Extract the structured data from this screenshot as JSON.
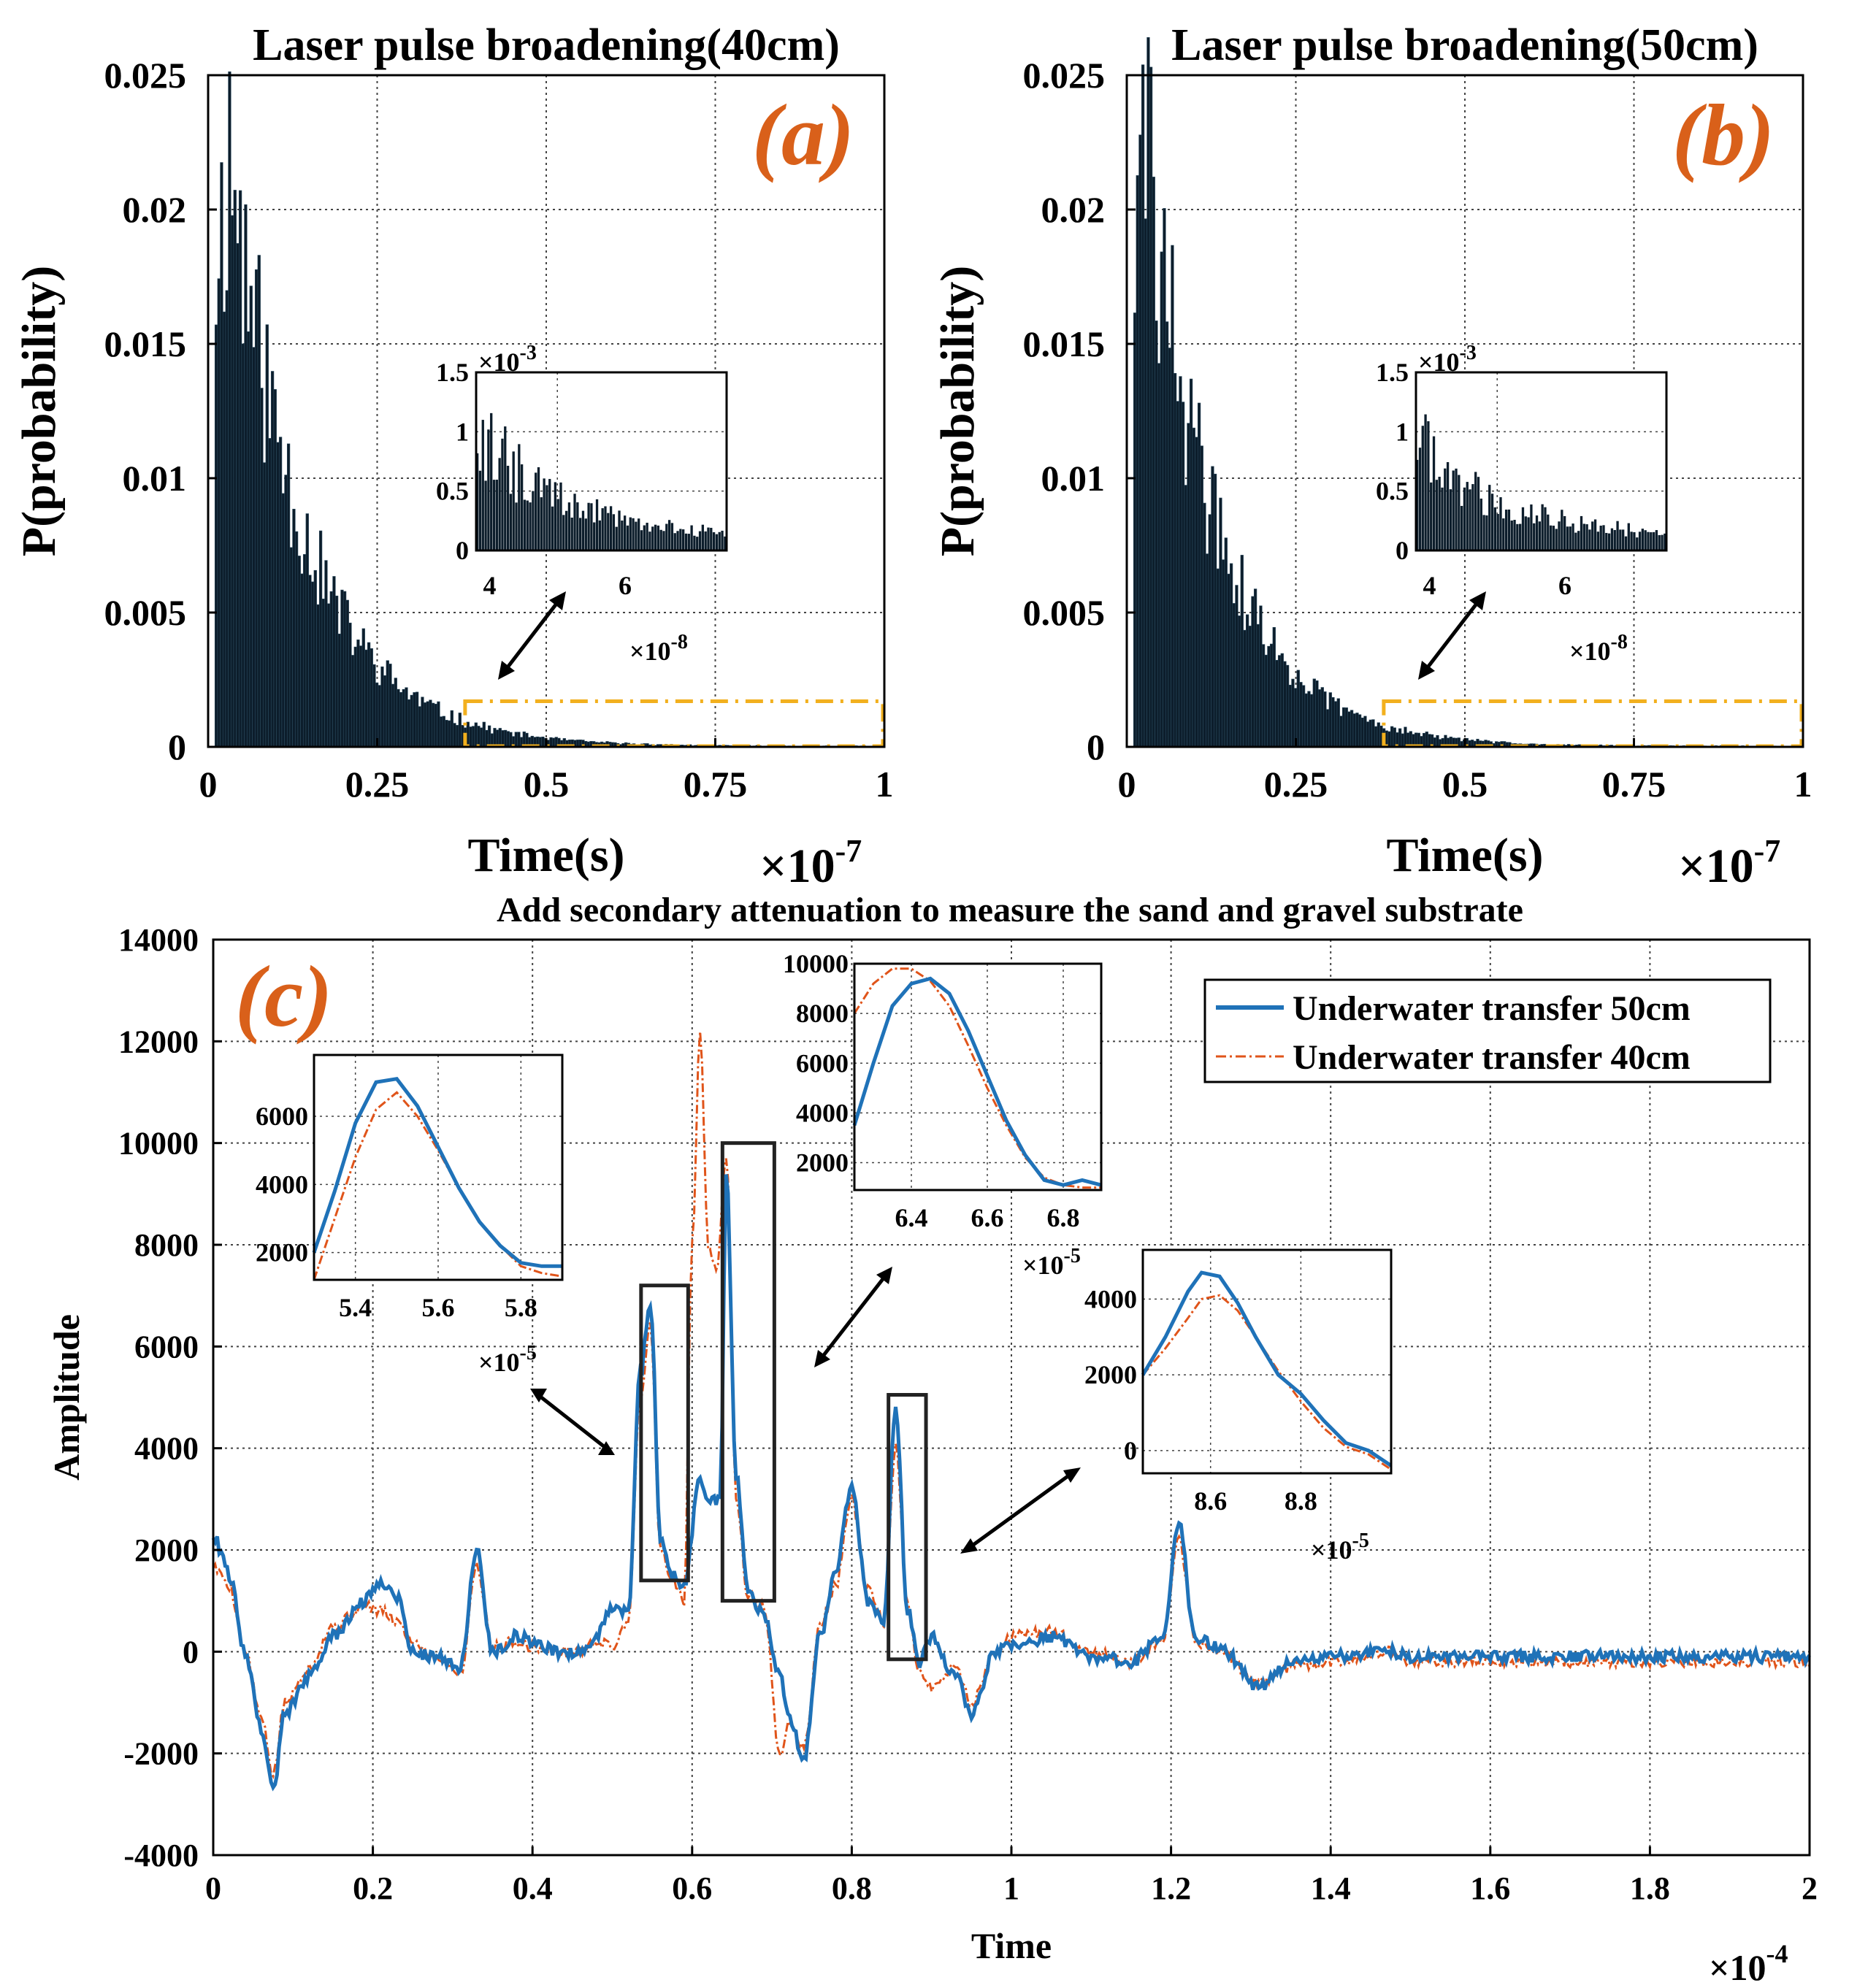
{
  "colors": {
    "hist": "#0c1d2b",
    "blue": "#1f72b8",
    "orange": "#e0541a",
    "highlight": "#f2b01e",
    "panel_label": "#d9601a"
  },
  "chart_data": [
    {
      "id": "a",
      "type": "bar",
      "panel_label": "(a)",
      "title": "Laser pulse broadening(40cm)",
      "xlabel": "Time(s)",
      "ylabel": "P(probability)",
      "x_scale": "×10",
      "x_scale_exp": "-7",
      "xlim": [
        0,
        1
      ],
      "ylim": [
        0,
        0.025
      ],
      "xticks": [
        "0",
        "0.25",
        "0.5",
        "0.75",
        "1"
      ],
      "yticks": [
        "0",
        "0.005",
        "0.01",
        "0.015",
        "0.02",
        "0.025"
      ],
      "histogram": {
        "bins": 250,
        "start": 0.01,
        "end": 1.0,
        "peak": 0.022,
        "peak_at": 0.03,
        "decay_const": 0.11
      },
      "highlight_box": {
        "x": [
          0.38,
          1.0
        ],
        "y": [
          0,
          0.0017
        ]
      },
      "inset": {
        "xlim": [
          3.8,
          7.5
        ],
        "ylim": [
          0,
          1.5
        ],
        "xticks": [
          "4",
          "6"
        ],
        "yticks": [
          "0",
          "0.5",
          "1",
          "1.5"
        ],
        "x_scale": "×10",
        "x_scale_exp": "-8",
        "y_scale": "×10",
        "y_scale_exp": "-3",
        "peak": 1.1
      }
    },
    {
      "id": "b",
      "type": "bar",
      "panel_label": "(b)",
      "title": "Laser pulse broadening(50cm)",
      "xlabel": "Time(s)",
      "ylabel": "P(probability)",
      "x_scale": "×10",
      "x_scale_exp": "-7",
      "xlim": [
        0,
        1
      ],
      "ylim": [
        0,
        0.025
      ],
      "xticks": [
        "0",
        "0.25",
        "0.5",
        "0.75",
        "1"
      ],
      "yticks": [
        "0",
        "0.005",
        "0.01",
        "0.015",
        "0.02",
        "0.025"
      ],
      "histogram": {
        "bins": 250,
        "start": 0.01,
        "end": 1.0,
        "peak": 0.0225,
        "peak_at": 0.025,
        "decay_const": 0.105
      },
      "highlight_box": {
        "x": [
          0.38,
          1.0
        ],
        "y": [
          0,
          0.0017
        ]
      },
      "inset": {
        "xlim": [
          3.8,
          7.5
        ],
        "ylim": [
          0,
          1.5
        ],
        "xticks": [
          "4",
          "6"
        ],
        "yticks": [
          "0",
          "0.5",
          "1",
          "1.5"
        ],
        "x_scale": "×10",
        "x_scale_exp": "-8",
        "y_scale": "×10",
        "y_scale_exp": "-3",
        "peak": 1.05
      }
    },
    {
      "id": "c",
      "type": "line",
      "panel_label": "(c)",
      "title": "Add secondary attenuation to measure the sand and gravel substrate",
      "xlabel": "Time",
      "ylabel": "Amplitude",
      "x_scale": "×10",
      "x_scale_exp": "-4",
      "xlim": [
        0,
        2
      ],
      "ylim": [
        -4000,
        14000
      ],
      "xticks": [
        "0",
        "0.2",
        "0.4",
        "0.6",
        "0.8",
        "1",
        "1.2",
        "1.4",
        "1.6",
        "1.8",
        "2"
      ],
      "yticks": [
        "-4000",
        "-2000",
        "0",
        "2000",
        "4000",
        "6000",
        "8000",
        "10000",
        "12000",
        "14000"
      ],
      "legend": [
        "Underwater transfer 50cm",
        "Underwater transfer 40cm"
      ],
      "legend_position": "top-right",
      "series": [
        {
          "name": "Underwater transfer 50cm",
          "x": [
            0,
            0.01,
            0.02,
            0.04,
            0.06,
            0.075,
            0.09,
            0.12,
            0.15,
            0.19,
            0.21,
            0.23,
            0.25,
            0.28,
            0.31,
            0.33,
            0.35,
            0.38,
            0.4,
            0.43,
            0.46,
            0.48,
            0.5,
            0.52,
            0.535,
            0.548,
            0.56,
            0.575,
            0.59,
            0.61,
            0.62,
            0.635,
            0.643,
            0.655,
            0.67,
            0.69,
            0.71,
            0.72,
            0.74,
            0.76,
            0.78,
            0.8,
            0.82,
            0.84,
            0.855,
            0.87,
            0.885,
            0.9,
            0.93,
            0.95,
            0.98,
            1.0,
            1.05,
            1.1,
            1.15,
            1.19,
            1.21,
            1.23,
            1.26,
            1.31,
            1.35,
            1.4,
            1.47,
            1.5,
            1.6,
            1.7,
            1.8,
            1.9,
            2.0
          ],
          "y": [
            2300,
            2000,
            1500,
            0,
            -1500,
            -2700,
            -1200,
            -500,
            300,
            1000,
            1400,
            1100,
            0,
            -100,
            -300,
            2000,
            0,
            300,
            200,
            0,
            0,
            300,
            900,
            800,
            5500,
            6900,
            2200,
            1500,
            1300,
            3400,
            3000,
            3000,
            9400,
            3500,
            1200,
            700,
            -500,
            -1200,
            -2100,
            300,
            1600,
            3300,
            1000,
            600,
            4800,
            800,
            -200,
            300,
            -500,
            -1200,
            0,
            100,
            300,
            -100,
            -200,
            300,
            2500,
            300,
            100,
            -700,
            -200,
            -100,
            0,
            -100,
            -100,
            -100,
            -100,
            -100,
            -100
          ]
        },
        {
          "name": "Underwater transfer 40cm",
          "x": [
            0,
            0.01,
            0.02,
            0.04,
            0.06,
            0.075,
            0.09,
            0.12,
            0.15,
            0.19,
            0.21,
            0.23,
            0.25,
            0.28,
            0.31,
            0.33,
            0.35,
            0.38,
            0.4,
            0.43,
            0.46,
            0.48,
            0.5,
            0.52,
            0.535,
            0.548,
            0.56,
            0.575,
            0.59,
            0.6,
            0.61,
            0.62,
            0.63,
            0.643,
            0.655,
            0.67,
            0.69,
            0.71,
            0.72,
            0.74,
            0.76,
            0.78,
            0.8,
            0.82,
            0.84,
            0.855,
            0.87,
            0.885,
            0.9,
            0.93,
            0.95,
            0.98,
            1.0,
            1.05,
            1.1,
            1.15,
            1.19,
            1.21,
            1.23,
            1.26,
            1.31,
            1.35,
            1.4,
            1.47,
            1.5,
            1.6,
            1.7,
            1.8,
            1.9,
            2.0
          ],
          "y": [
            1700,
            1500,
            1300,
            0,
            -1300,
            -2400,
            -1000,
            -300,
            500,
            900,
            800,
            600,
            200,
            -100,
            -400,
            1700,
            100,
            200,
            100,
            0,
            0,
            200,
            100,
            600,
            5000,
            6400,
            2000,
            1400,
            1000,
            8000,
            12200,
            8000,
            7500,
            9800,
            3000,
            1100,
            900,
            -2100,
            -1400,
            -1900,
            500,
            1300,
            3000,
            1200,
            600,
            4000,
            900,
            -400,
            -700,
            -300,
            -1000,
            0,
            300,
            400,
            0,
            -200,
            200,
            2200,
            200,
            0,
            -600,
            -300,
            -200,
            0,
            -200,
            -200,
            -200,
            -200,
            -200,
            -200
          ]
        }
      ],
      "boxes": [
        {
          "x": [
            0.536,
            0.595
          ],
          "y": [
            1400,
            7200
          ]
        },
        {
          "x": [
            0.638,
            0.703
          ],
          "y": [
            1000,
            10000
          ]
        },
        {
          "x": [
            0.846,
            0.893
          ],
          "y": [
            -150,
            5050
          ]
        }
      ],
      "insets": [
        {
          "xlim": [
            5.3,
            5.9
          ],
          "ylim": [
            1200,
            7800
          ],
          "xticks": [
            5.4,
            5.6,
            5.8
          ],
          "xtick_labels": [
            "5.4",
            "5.6",
            "5.8"
          ],
          "yticks": [
            2000,
            4000,
            6000
          ],
          "ytick_labels": [
            "2000",
            "4000",
            "6000"
          ],
          "x_scale": "×10",
          "x_scale_exp": "-5",
          "blue": {
            "x": [
              5.3,
              5.35,
              5.4,
              5.45,
              5.5,
              5.55,
              5.6,
              5.65,
              5.7,
              5.75,
              5.8,
              5.85,
              5.9
            ],
            "y": [
              2000,
              3800,
              5800,
              7000,
              7100,
              6300,
              5100,
              3900,
              2900,
              2200,
              1700,
              1600,
              1600
            ]
          },
          "orange": {
            "x": [
              5.3,
              5.35,
              5.4,
              5.45,
              5.5,
              5.55,
              5.6,
              5.65,
              5.7,
              5.75,
              5.8,
              5.85,
              5.9
            ],
            "y": [
              1200,
              3000,
              4800,
              6200,
              6700,
              6000,
              5000,
              3900,
              2900,
              2200,
              1600,
              1400,
              1300
            ]
          }
        },
        {
          "xlim": [
            6.25,
            6.9
          ],
          "ylim": [
            900,
            10000
          ],
          "xticks": [
            6.4,
            6.6,
            6.8
          ],
          "xtick_labels": [
            "6.4",
            "6.6",
            "6.8"
          ],
          "yticks": [
            2000,
            4000,
            6000,
            8000,
            10000
          ],
          "ytick_labels": [
            "2000",
            "4000",
            "6000",
            "8000",
            "10000"
          ],
          "x_scale": "×10",
          "x_scale_exp": "-5",
          "blue": {
            "x": [
              6.25,
              6.3,
              6.35,
              6.4,
              6.45,
              6.5,
              6.55,
              6.6,
              6.65,
              6.7,
              6.75,
              6.8,
              6.85,
              6.9
            ],
            "y": [
              3500,
              6000,
              8300,
              9200,
              9400,
              8800,
              7300,
              5500,
              3700,
              2300,
              1300,
              1100,
              1300,
              1100
            ]
          },
          "orange": {
            "x": [
              6.25,
              6.3,
              6.35,
              6.4,
              6.45,
              6.5,
              6.55,
              6.6,
              6.65,
              6.7,
              6.75,
              6.8,
              6.85,
              6.9
            ],
            "y": [
              8000,
              9200,
              9800,
              9800,
              9300,
              8300,
              6700,
              5000,
              3500,
              2200,
              1400,
              1100,
              1000,
              1000
            ]
          }
        },
        {
          "xlim": [
            8.45,
            9.0
          ],
          "ylim": [
            -600,
            5300
          ],
          "xticks": [
            8.6,
            8.8
          ],
          "xtick_labels": [
            "8.6",
            "8.8"
          ],
          "yticks": [
            0,
            2000,
            4000
          ],
          "ytick_labels": [
            "0",
            "2000",
            "4000"
          ],
          "x_scale": "×10",
          "x_scale_exp": "-5",
          "blue": {
            "x": [
              8.45,
              8.5,
              8.55,
              8.58,
              8.62,
              8.66,
              8.7,
              8.75,
              8.8,
              8.85,
              8.9,
              8.95,
              9.0
            ],
            "y": [
              2000,
              3000,
              4200,
              4700,
              4600,
              3900,
              3000,
              2000,
              1500,
              800,
              200,
              0,
              -400
            ]
          },
          "orange": {
            "x": [
              8.45,
              8.5,
              8.55,
              8.58,
              8.62,
              8.66,
              8.7,
              8.75,
              8.8,
              8.85,
              8.9,
              8.95,
              9.0
            ],
            "y": [
              2000,
              2700,
              3500,
              4000,
              4100,
              3700,
              3000,
              2100,
              1300,
              600,
              100,
              -100,
              -500
            ]
          }
        }
      ]
    }
  ]
}
